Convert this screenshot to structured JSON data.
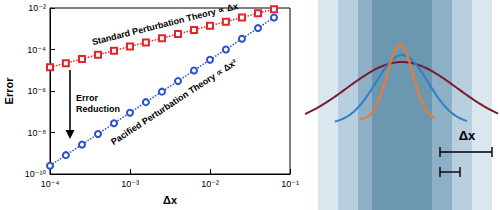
{
  "chart_data": {
    "type": "line",
    "log": true,
    "grid": false,
    "x_label": "Δx",
    "y_label": "Error",
    "xlim": [
      0.0001,
      0.1
    ],
    "xticks": [
      {
        "value": 0.0001,
        "label": "10⁻⁴"
      },
      {
        "value": 0.001,
        "label": "10⁻³"
      },
      {
        "value": 0.01,
        "label": "10⁻²"
      },
      {
        "value": 0.1,
        "label": "10⁻¹"
      }
    ],
    "ylim": [
      1e-10,
      0.01
    ],
    "yticks": [
      {
        "value": 1e-10,
        "label": "10⁻¹⁰"
      },
      {
        "value": 1e-08,
        "label": "10⁻⁸"
      },
      {
        "value": 1e-06,
        "label": "10⁻⁶"
      },
      {
        "value": 0.0001,
        "label": "10⁻⁴"
      },
      {
        "value": 0.01,
        "label": "10⁻²"
      }
    ],
    "x": [
      0.0001,
      0.000158,
      0.000251,
      0.000398,
      0.000631,
      0.001,
      0.00158,
      0.00251,
      0.00398,
      0.00631,
      0.01,
      0.0158,
      0.0251,
      0.0398,
      0.0631
    ],
    "series": [
      {
        "color": "#e3242b",
        "marker": "square",
        "line_style": "dotted",
        "values": [
          1.4e-05,
          2.2e-05,
          3.5e-05,
          5.6e-05,
          8.8e-05,
          0.00014,
          0.00022,
          0.00035,
          0.00056,
          0.00088,
          0.0014,
          0.0022,
          0.0035,
          0.0056,
          0.0088
        ]
      },
      {
        "color": "#2b4fd1",
        "marker": "circle",
        "line_style": "dotted",
        "values": [
          2.5e-10,
          8.1e-10,
          2.6e-09,
          8.5e-09,
          2.8e-08,
          8.9e-08,
          2.9e-07,
          9.3e-07,
          3e-06,
          9.8e-06,
          3.2e-05,
          0.0001,
          0.00033,
          0.00107,
          0.0035
        ]
      }
    ],
    "annotations": [
      "Standard Perturbation Theory ∝ Δx",
      "Error Reduction",
      "Pacified Perturbation Theory ∝ Δx²"
    ]
  },
  "diagram": {
    "label": "Δx"
  }
}
